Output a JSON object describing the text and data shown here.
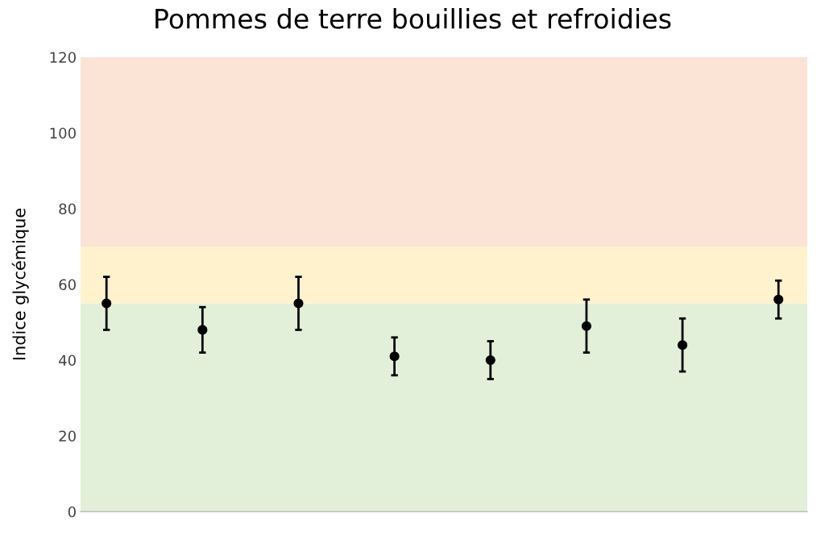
{
  "chart_data": {
    "type": "scatter",
    "title": "Pommes de terre bouillies et refroidies",
    "ylabel": "Indice glycémique",
    "categories": [
      null,
      null,
      null,
      null,
      null,
      null,
      null,
      null
    ],
    "series": [
      {
        "color": "#000000",
        "values": [
          55,
          48,
          55,
          41,
          40,
          49,
          44,
          56
        ],
        "errors": [
          [
            48,
            62
          ],
          [
            42,
            54
          ],
          [
            48,
            62
          ],
          [
            36,
            46
          ],
          [
            35,
            45
          ],
          [
            42,
            56
          ],
          [
            37,
            51
          ],
          [
            51,
            61
          ]
        ]
      }
    ],
    "ylim": [
      0,
      120
    ],
    "yticks": [
      0,
      20,
      40,
      60,
      80,
      100,
      120
    ],
    "bands": [
      {
        "axis": "y",
        "from": 0,
        "to": 55,
        "color": "#e2efd9"
      },
      {
        "axis": "y",
        "from": 55,
        "to": 70,
        "color": "#fff2cc"
      },
      {
        "axis": "y",
        "from": 70,
        "to": 120,
        "color": "#fbe4d5"
      }
    ],
    "marker": "circle",
    "grid": false,
    "legend": false
  }
}
